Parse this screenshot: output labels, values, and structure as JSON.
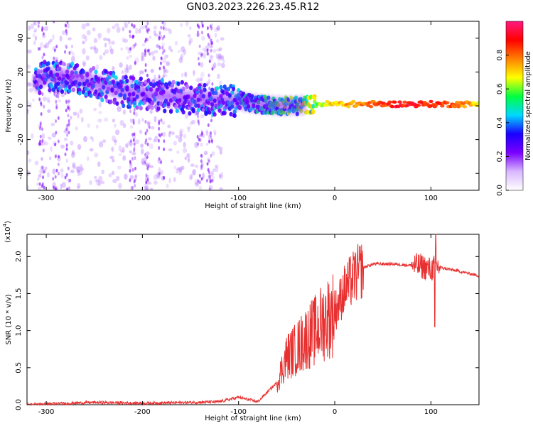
{
  "title": "GN03.2023.226.23.45.R12",
  "chart_data": [
    {
      "type": "heatmap",
      "xlabel": "Height of straight line (km)",
      "ylabel": "Frequency (Hz)",
      "xlim": [
        -320,
        150
      ],
      "ylim": [
        -50,
        50
      ],
      "xticks": [
        -300,
        -200,
        -100,
        0,
        100
      ],
      "yticks": [
        -40,
        -20,
        0,
        20,
        40
      ],
      "colorbar": {
        "label": "Normalized spectral amplitude",
        "range": [
          0.0,
          1.0
        ],
        "ticks": [
          "0.0",
          "0.2",
          "0.4",
          "0.6",
          "0.8"
        ],
        "colors": [
          "#ffffff",
          "#d9b8ff",
          "#7a00ff",
          "#1a00ff",
          "#00d9ff",
          "#00ff40",
          "#ffff00",
          "#ff8000",
          "#ff0000",
          "#ff1a80"
        ]
      },
      "ridge": {
        "x": [
          -310,
          -300,
          -280,
          -260,
          -240,
          -220,
          -200,
          -180,
          -160,
          -140,
          -120,
          -100,
          -80,
          -60,
          -40,
          -20,
          0,
          20,
          50,
          80,
          110,
          150
        ],
        "y": [
          14,
          18,
          17,
          15,
          12,
          9,
          7,
          6,
          5,
          4,
          3,
          3,
          1,
          0,
          0,
          1,
          1,
          1,
          1,
          1,
          1,
          1
        ],
        "amplitude": [
          0.25,
          0.32,
          0.28,
          0.3,
          0.3,
          0.32,
          0.28,
          0.27,
          0.28,
          0.3,
          0.32,
          0.35,
          0.4,
          0.45,
          0.5,
          0.6,
          0.72,
          0.75,
          0.85,
          0.9,
          0.85,
          0.7
        ]
      }
    },
    {
      "type": "line",
      "xlabel": "Height of straight line (km)",
      "ylabel": "SNR (10 * v/v)",
      "scale_note": "(x10",
      "scale_exp": "4",
      "xlim": [
        -320,
        150
      ],
      "ylim": [
        0,
        2.3
      ],
      "xticks": [
        -300,
        -200,
        -100,
        0,
        100
      ],
      "yticks": [
        "0.0",
        "0.5",
        "1.0",
        "1.5",
        "2.0"
      ],
      "color": "#e83030",
      "series": [
        {
          "x": [
            -320,
            -300,
            -250,
            -200,
            -150,
            -120,
            -100,
            -80,
            -60,
            -50,
            -40,
            -30,
            -20,
            -10,
            0,
            10,
            20,
            30,
            40,
            60,
            80,
            90,
            100,
            105,
            110,
            130,
            150
          ],
          "y": [
            0.0,
            0.01,
            0.03,
            0.02,
            0.03,
            0.04,
            0.1,
            0.04,
            0.3,
            0.65,
            0.75,
            0.9,
            1.0,
            1.15,
            1.25,
            1.55,
            1.72,
            1.85,
            1.9,
            1.9,
            1.88,
            1.87,
            1.82,
            1.88,
            1.85,
            1.8,
            1.74
          ]
        }
      ]
    }
  ]
}
